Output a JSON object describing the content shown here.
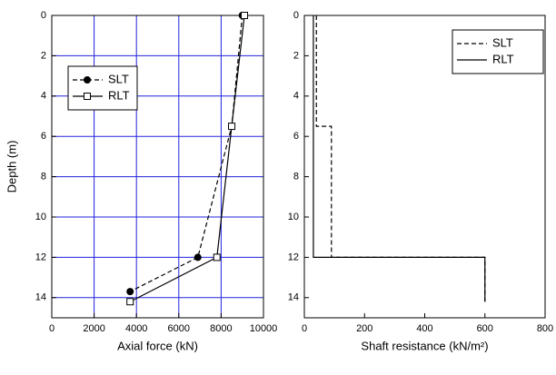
{
  "chart_data": [
    {
      "type": "line",
      "xlabel": "Axial force (kN)",
      "ylabel": "Depth (m)",
      "xlim": [
        0,
        10000
      ],
      "xticks": [
        0,
        2000,
        4000,
        6000,
        8000,
        10000
      ],
      "ylim": [
        0,
        15
      ],
      "yticks": [
        0,
        2,
        4,
        6,
        8,
        10,
        12,
        14
      ],
      "y_reversed": true,
      "grid": true,
      "grid_color": "#2222dd",
      "legend": "upper left",
      "series": [
        {
          "name": "SLT",
          "color": "#000000",
          "dash": true,
          "marker": "filled-circle",
          "x": [
            9000,
            8500,
            6900,
            3700
          ],
          "y": [
            0,
            5.5,
            12,
            13.7
          ]
        },
        {
          "name": "RLT",
          "color": "#000000",
          "dash": false,
          "marker": "open-square",
          "x": [
            9100,
            8500,
            7800,
            3700
          ],
          "y": [
            0,
            5.5,
            12,
            14.2
          ]
        }
      ]
    },
    {
      "type": "line",
      "xlabel": "Shaft resistance (kN/m²)",
      "xlim": [
        0,
        800
      ],
      "xticks": [
        0,
        200,
        400,
        600,
        800
      ],
      "ylim": [
        0,
        15
      ],
      "yticks": [
        0,
        2,
        4,
        6,
        8,
        10,
        12,
        14
      ],
      "y_reversed": true,
      "grid": false,
      "legend": "upper right",
      "series": [
        {
          "name": "SLT",
          "color": "#000000",
          "dash": true,
          "x": [
            40,
            40,
            90,
            90,
            600,
            600
          ],
          "y": [
            0,
            5.5,
            5.5,
            12,
            12,
            14.2
          ]
        },
        {
          "name": "RLT",
          "color": "#000000",
          "dash": false,
          "x": [
            30,
            30,
            600,
            600
          ],
          "y": [
            0,
            12,
            12,
            14.2
          ]
        }
      ]
    }
  ]
}
